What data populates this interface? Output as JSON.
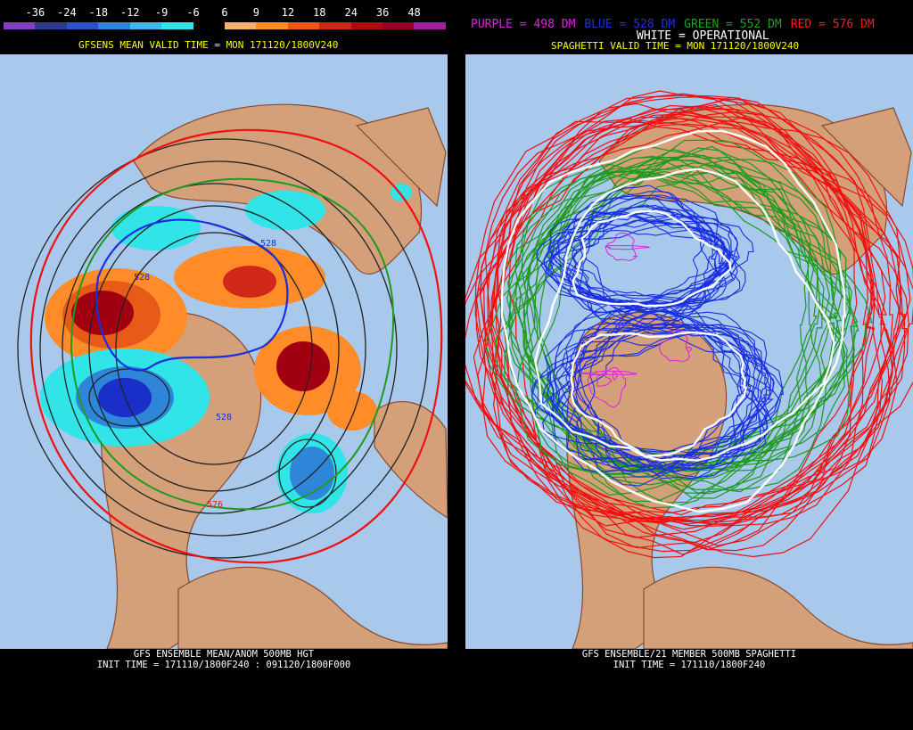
{
  "left": {
    "colorbar": {
      "ticks": [
        "-36",
        "-24",
        "-18",
        "-12",
        "-9",
        "-6",
        "6",
        "9",
        "12",
        "18",
        "24",
        "36",
        "48"
      ],
      "colors": [
        "#8040c0",
        "#2c3c8c",
        "#3050c8",
        "#2f86d8",
        "#42b8e8",
        "#30e4e8",
        "#000000",
        "#f3b070",
        "#ff8c28",
        "#e85a18",
        "#d02818",
        "#a81010",
        "#900020",
        "#a020a0"
      ]
    },
    "header": "GFSENS MEAN VALID TIME = MON 171120/1800V240",
    "footer_line1": "GFS ENSEMBLE MEAN/ANOM 500MB HGT",
    "footer_line2": "INIT TIME = 171110/1800F240 : 091120/1800F000",
    "contour_labels": [
      "528",
      "528",
      "528",
      "576"
    ],
    "colors": {
      "anom_pos_strong": "#a00010",
      "anom_pos": "#ff8c28",
      "anom_neg": "#30e4e8",
      "anom_neg_strong": "#1a2ec8",
      "land": "#d4a07a",
      "ocean": "#a8c8ec"
    }
  },
  "right": {
    "legend": [
      {
        "text": "PURPLE = 498 DM",
        "color": "#e020e0"
      },
      {
        "text": "BLUE = 528 DM",
        "color": "#2030e0"
      },
      {
        "text": "GREEN = 552 DM",
        "color": "#20a020"
      },
      {
        "text": "RED = 576 DM",
        "color": "#f02020"
      }
    ],
    "white_label": "WHITE = OPERATIONAL",
    "header": "SPAGHETTI VALID TIME = MON 171120/1800V240",
    "footer_line1": "GFS ENSEMBLE/21 MEMBER 500MB SPAGHETTI",
    "footer_line2": "INIT TIME = 171110/1800F240",
    "colors": {
      "purple": "#e020e0",
      "blue": "#1a2ee0",
      "green": "#1f9a1f",
      "red": "#f01010",
      "white": "#ffffff"
    }
  }
}
